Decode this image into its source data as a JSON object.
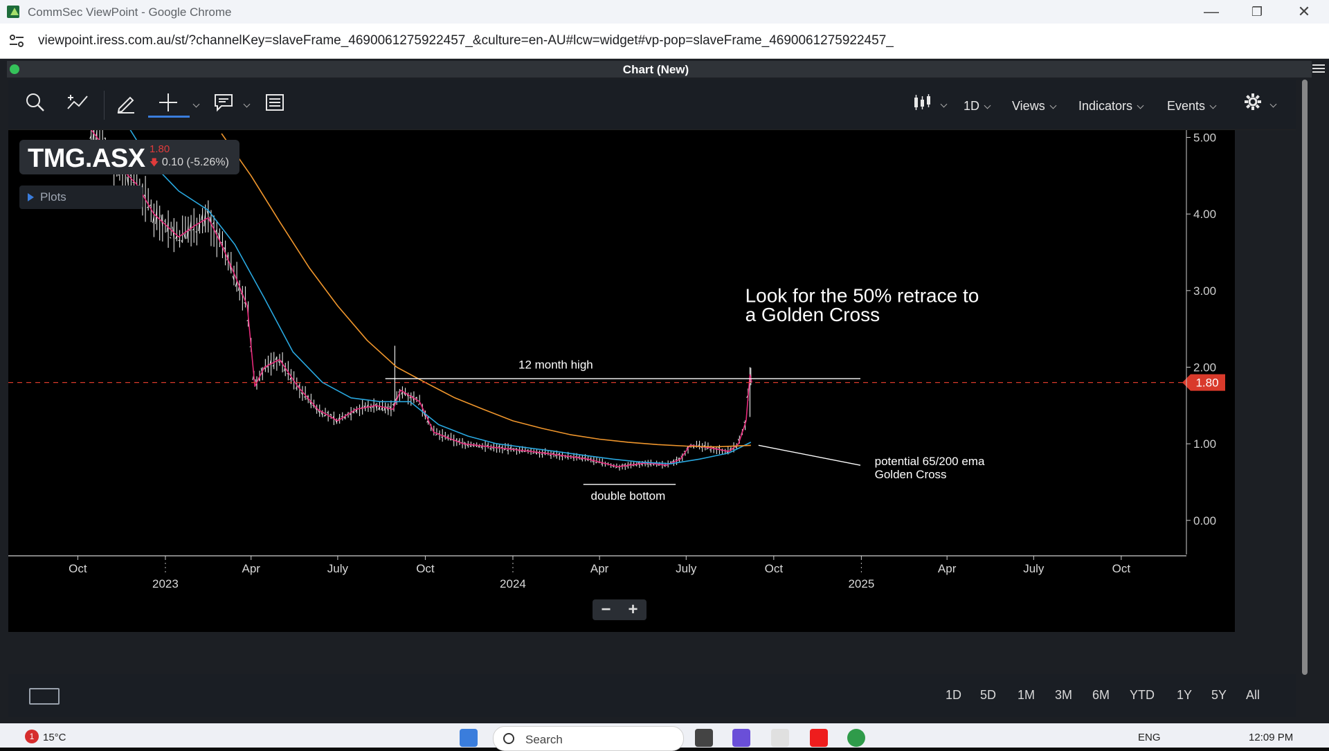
{
  "window": {
    "title": "CommSec ViewPoint - Google Chrome",
    "url": "viewpoint.iress.com.au/st/?channelKey=slaveFrame_4690061275922457_&culture=en-AU#lcw=widget#vp-pop=slaveFrame_4690061275922457_"
  },
  "panel": {
    "title": "Chart (New)"
  },
  "toolbar": {
    "interval": "1D",
    "views": "Views",
    "indicators": "Indicators",
    "events": "Events"
  },
  "ticker": {
    "symbol": "TMG.ASX",
    "price": "1.80",
    "change": "0.10 (-5.26%)",
    "plots_label": "Plots"
  },
  "zoom": {
    "minus": "−",
    "plus": "+"
  },
  "ranges": [
    "1D",
    "5D",
    "1M",
    "3M",
    "6M",
    "YTD",
    "1Y",
    "5Y",
    "All"
  ],
  "colors": {
    "price": "#ffffff",
    "ema_fast": "#e6297a",
    "ema_65": "#29a8e0",
    "ema_200": "#f0962c",
    "price_line": "#d93a2b",
    "down": "#e03b3b",
    "accent": "#3a7ddc"
  },
  "chart_data": {
    "type": "line",
    "title": "",
    "xlabel": "",
    "ylabel": "",
    "ylim": [
      -0.3,
      5.05
    ],
    "y_ticks": [
      "5.00",
      "4.00",
      "3.00",
      "2.00",
      "1.00",
      "0.00"
    ],
    "x_tick_labels": [
      "Oct",
      "2023",
      "Apr",
      "July",
      "Oct",
      "2024",
      "Apr",
      "July",
      "Oct",
      "2025",
      "Apr",
      "July",
      "Oct"
    ],
    "current_price_label": "1.80",
    "series": [
      {
        "values": [
          [
            "2022-10-15",
            5.1
          ],
          [
            "2022-11-15",
            4.6
          ],
          [
            "2022-12-01",
            4.4
          ],
          [
            "2022-12-20",
            4.0
          ],
          [
            "2023-01-15",
            3.7
          ],
          [
            "2023-02-01",
            3.85
          ],
          [
            "2023-02-15",
            3.95
          ],
          [
            "2023-03-01",
            3.6
          ],
          [
            "2023-03-15",
            3.2
          ],
          [
            "2023-03-28",
            2.8
          ],
          [
            "2023-04-05",
            1.75
          ],
          [
            "2023-04-15",
            2.0
          ],
          [
            "2023-05-01",
            2.1
          ],
          [
            "2023-05-20",
            1.75
          ],
          [
            "2023-06-10",
            1.45
          ],
          [
            "2023-07-01",
            1.3
          ],
          [
            "2023-07-20",
            1.45
          ],
          [
            "2023-08-10",
            1.5
          ],
          [
            "2023-08-28",
            1.45
          ],
          [
            "2023-09-05",
            1.7
          ],
          [
            "2023-09-25",
            1.55
          ],
          [
            "2023-10-10",
            1.15
          ],
          [
            "2023-11-10",
            1.0
          ],
          [
            "2023-12-15",
            0.95
          ],
          [
            "2024-01-20",
            0.9
          ],
          [
            "2024-02-20",
            0.85
          ],
          [
            "2024-03-20",
            0.8
          ],
          [
            "2024-04-20",
            0.7
          ],
          [
            "2024-05-20",
            0.75
          ],
          [
            "2024-06-10",
            0.72
          ],
          [
            "2024-06-25",
            0.8
          ],
          [
            "2024-07-05",
            0.98
          ],
          [
            "2024-07-25",
            0.95
          ],
          [
            "2024-08-15",
            0.9
          ],
          [
            "2024-08-25",
            1.0
          ],
          [
            "2024-09-02",
            1.3
          ],
          [
            "2024-09-06",
            1.9
          ],
          [
            "2024-09-08",
            1.8
          ]
        ]
      },
      {
        "values": [
          [
            "2022-11-15",
            5.3
          ],
          [
            "2022-12-15",
            4.7
          ],
          [
            "2023-01-15",
            4.3
          ],
          [
            "2023-02-15",
            4.05
          ],
          [
            "2023-03-15",
            3.6
          ],
          [
            "2023-04-15",
            2.9
          ],
          [
            "2023-05-15",
            2.2
          ],
          [
            "2023-06-15",
            1.8
          ],
          [
            "2023-07-15",
            1.6
          ],
          [
            "2023-08-15",
            1.55
          ],
          [
            "2023-09-15",
            1.55
          ],
          [
            "2023-10-15",
            1.25
          ],
          [
            "2023-11-15",
            1.1
          ],
          [
            "2023-12-15",
            1.0
          ],
          [
            "2024-01-15",
            0.95
          ],
          [
            "2024-02-15",
            0.9
          ],
          [
            "2024-03-15",
            0.85
          ],
          [
            "2024-04-15",
            0.8
          ],
          [
            "2024-05-15",
            0.76
          ],
          [
            "2024-06-15",
            0.74
          ],
          [
            "2024-07-15",
            0.8
          ],
          [
            "2024-08-15",
            0.88
          ],
          [
            "2024-09-07",
            1.02
          ]
        ]
      },
      {
        "values": [
          [
            "2023-03-01",
            5.05
          ],
          [
            "2023-04-01",
            4.5
          ],
          [
            "2023-05-01",
            3.9
          ],
          [
            "2023-06-01",
            3.3
          ],
          [
            "2023-07-01",
            2.8
          ],
          [
            "2023-08-01",
            2.35
          ],
          [
            "2023-09-01",
            2.0
          ],
          [
            "2023-10-01",
            1.8
          ],
          [
            "2023-11-01",
            1.6
          ],
          [
            "2023-12-01",
            1.45
          ],
          [
            "2024-01-01",
            1.3
          ],
          [
            "2024-02-01",
            1.2
          ],
          [
            "2024-03-01",
            1.12
          ],
          [
            "2024-04-01",
            1.06
          ],
          [
            "2024-05-01",
            1.02
          ],
          [
            "2024-06-01",
            0.99
          ],
          [
            "2024-07-01",
            0.97
          ],
          [
            "2024-08-01",
            0.96
          ],
          [
            "2024-09-07",
            0.98
          ]
        ]
      }
    ],
    "annotations": [
      {
        "text": "Look for the 50% retrace to",
        "x": "2024-09-01",
        "y": 2.85
      },
      {
        "text": "a Golden Cross",
        "x": "2024-09-01",
        "y": 2.6
      },
      {
        "text": "12 month high",
        "x": "2024-02-15",
        "y": 1.98
      },
      {
        "text": "double bottom",
        "x": "2024-05-01",
        "y": 0.27
      },
      {
        "text": "potential 65/200 ema",
        "x": "2025-01-15",
        "y": 0.72
      },
      {
        "text": "Golden Cross",
        "x": "2025-01-15",
        "y": 0.55
      }
    ],
    "lines": [
      {
        "x1": "2023-08-20",
        "y1": 1.85,
        "x2": "2024-12-31",
        "y2": 1.85
      },
      {
        "x1": "2024-03-15",
        "y1": 0.47,
        "x2": "2024-06-20",
        "y2": 0.47
      },
      {
        "x1": "2024-09-15",
        "y1": 0.98,
        "x2": "2024-12-31",
        "y2": 0.72
      }
    ]
  }
}
